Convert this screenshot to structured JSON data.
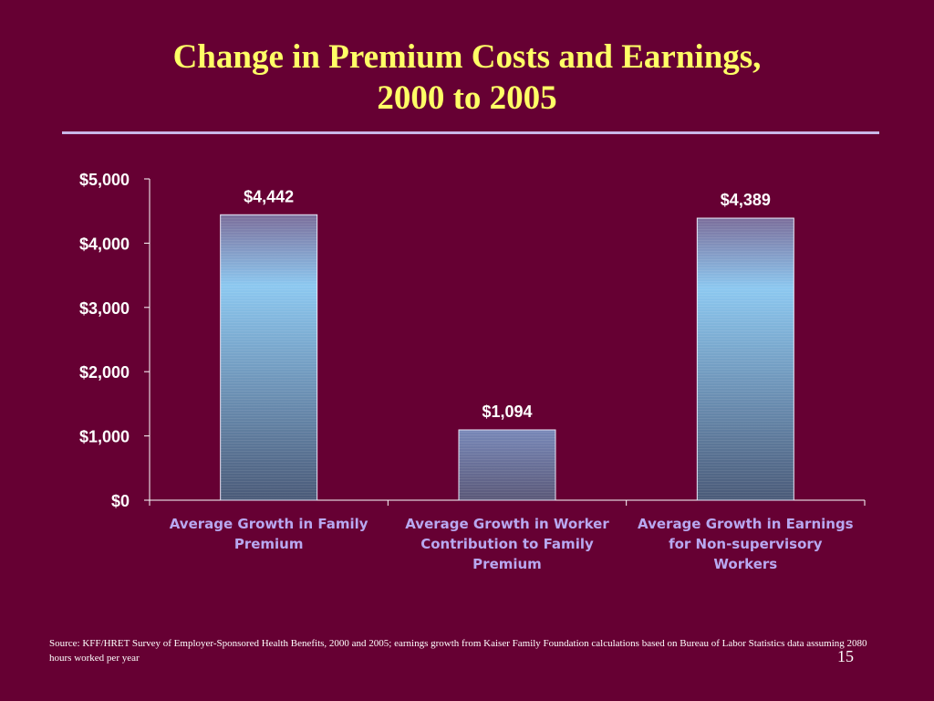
{
  "slide": {
    "title_line1": "Change in Premium Costs and Earnings,",
    "title_line2": "2000 to 2005",
    "source": "Source:  KFF/HRET Survey of Employer-Sponsored Health Benefits, 2000 and 2005; earnings growth from Kaiser Family Foundation calculations based on Bureau of Labor Statistics data assuming 2080 hours worked per year",
    "page_number": "15"
  },
  "colors": {
    "background": "#660033",
    "title": "#FFFF66",
    "rule": "#C9B8E8",
    "category_label": "#B8A8F0",
    "bar_top": "#8CC8F0",
    "bar_bottom": "#4A5A78",
    "bar_mid_bottom": "#5A5878",
    "text": "#FFFFFF"
  },
  "chart_data": {
    "type": "bar",
    "title": "",
    "xlabel": "",
    "ylabel": "",
    "categories": [
      [
        "Average Growth in Family",
        "Premium"
      ],
      [
        "Average Growth in Worker",
        "Contribution to  Family",
        "Premium"
      ],
      [
        "Average Growth in Earnings",
        "for Non-supervisory",
        "Workers"
      ]
    ],
    "values": [
      4442,
      1094,
      4389
    ],
    "data_labels": [
      "$4,442",
      "$1,094",
      "$4,389"
    ],
    "ylim": [
      0,
      5000
    ],
    "yticks": [
      0,
      1000,
      2000,
      3000,
      4000,
      5000
    ],
    "ytick_labels": [
      "$0",
      "$1,000",
      "$2,000",
      "$3,000",
      "$4,000",
      "$5,000"
    ],
    "grid": false,
    "legend": "none"
  }
}
